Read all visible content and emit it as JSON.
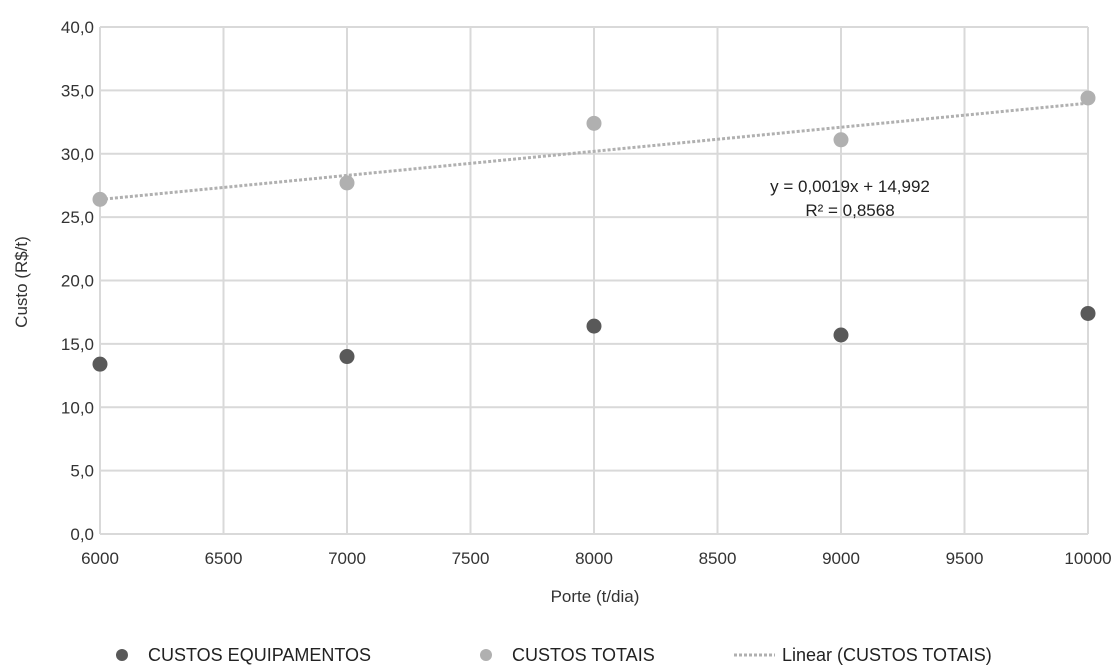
{
  "chart_data": {
    "type": "scatter",
    "xlabel": "Porte (t/dia)",
    "ylabel": "Custo (R$/t)",
    "xlim": [
      6000,
      10000
    ],
    "ylim": [
      0,
      40
    ],
    "x_ticks": [
      6000,
      6500,
      7000,
      7500,
      8000,
      8500,
      9000,
      9500,
      10000
    ],
    "x_tick_labels": [
      "6000",
      "6500",
      "7000",
      "7500",
      "8000",
      "8500",
      "9000",
      "9500",
      "10000"
    ],
    "y_ticks": [
      0,
      5,
      10,
      15,
      20,
      25,
      30,
      35,
      40
    ],
    "y_tick_labels": [
      "0,0",
      "5,0",
      "10,0",
      "15,0",
      "20,0",
      "25,0",
      "30,0",
      "35,0",
      "40,0"
    ],
    "grid": true,
    "legend_position": "bottom",
    "series": [
      {
        "name": "CUSTOS EQUIPAMENTOS",
        "color": "#595959",
        "x": [
          6000,
          7000,
          8000,
          9000,
          10000
        ],
        "y": [
          13.4,
          14.0,
          16.4,
          15.7,
          17.4
        ]
      },
      {
        "name": "CUSTOS TOTAIS",
        "color": "#b0b0b0",
        "x": [
          6000,
          7000,
          8000,
          9000,
          10000
        ],
        "y": [
          26.4,
          27.7,
          32.4,
          31.1,
          34.4
        ]
      }
    ],
    "trendline": {
      "name": "Linear (CUSTOS TOTAIS)",
      "color": "#b0b0b0",
      "slope": 0.0019,
      "intercept": 14.992,
      "equation": "y = 0,0019x + 14,992",
      "r_squared": "R² = 0,8568"
    }
  }
}
